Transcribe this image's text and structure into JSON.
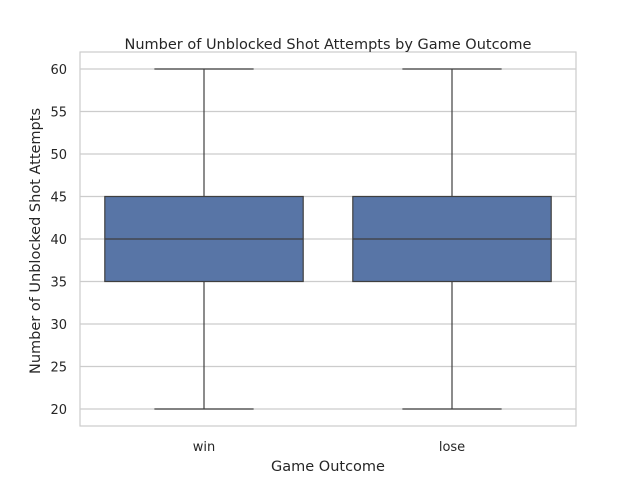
{
  "chart_data": {
    "type": "box",
    "title": "Number of Unblocked Shot Attempts by Game Outcome",
    "xlabel": "Game Outcome",
    "ylabel": "Number of Unblocked Shot Attempts",
    "categories": [
      "win",
      "lose"
    ],
    "boxes": [
      {
        "category": "win",
        "min": 20,
        "q1": 35,
        "median": 40,
        "q3": 45,
        "max": 60
      },
      {
        "category": "lose",
        "min": 20,
        "q1": 35,
        "median": 40,
        "q3": 45,
        "max": 60
      }
    ],
    "y_ticks": [
      20,
      25,
      30,
      35,
      40,
      45,
      50,
      55,
      60
    ],
    "ylim": [
      18,
      62
    ],
    "grid": "horizontal",
    "legend": "none",
    "colors": {
      "box_fill": "#5875a6",
      "box_line": "#3f3f3f",
      "grid": "#cccccc",
      "frame": "#cccccc",
      "text": "#262626"
    }
  }
}
